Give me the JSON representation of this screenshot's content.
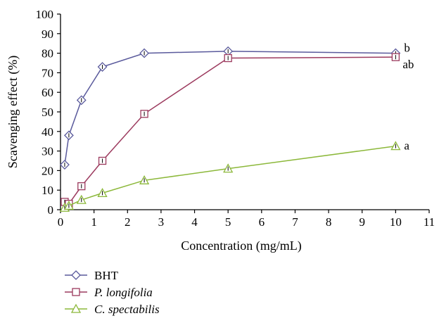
{
  "chart_data": {
    "type": "line",
    "title": "",
    "xlabel": "Concentration  (mg/mL)",
    "ylabel": "Scavenging effect (%)",
    "xlim": [
      0,
      11
    ],
    "ylim": [
      0,
      100
    ],
    "xticks": [
      0,
      1,
      2,
      3,
      4,
      5,
      6,
      7,
      8,
      9,
      10,
      11
    ],
    "yticks": [
      0,
      10,
      20,
      30,
      40,
      50,
      60,
      70,
      80,
      90,
      100
    ],
    "grid": false,
    "legend_position": "bottom-left",
    "series": [
      {
        "name": "BHT",
        "italic": false,
        "color": "#5a5a9c",
        "marker": "diamond",
        "x": [
          0.125,
          0.25,
          0.625,
          1.25,
          2.5,
          5,
          10
        ],
        "y": [
          23,
          38,
          56,
          73,
          80,
          81,
          80
        ],
        "annotation": "b"
      },
      {
        "name": "P. longifolia",
        "italic": true,
        "color": "#9c3a5e",
        "marker": "square",
        "x": [
          0.125,
          0.25,
          0.625,
          1.25,
          2.5,
          5,
          10
        ],
        "y": [
          4,
          3,
          12,
          25,
          49,
          77.5,
          78
        ],
        "annotation": "ab"
      },
      {
        "name": "C. spectabilis",
        "italic": true,
        "color": "#8cb83a",
        "marker": "triangle",
        "x": [
          0.125,
          0.25,
          0.625,
          1.25,
          2.5,
          5,
          10
        ],
        "y": [
          1,
          2,
          5,
          8.5,
          15,
          21,
          32.5
        ],
        "annotation": "a"
      }
    ]
  }
}
